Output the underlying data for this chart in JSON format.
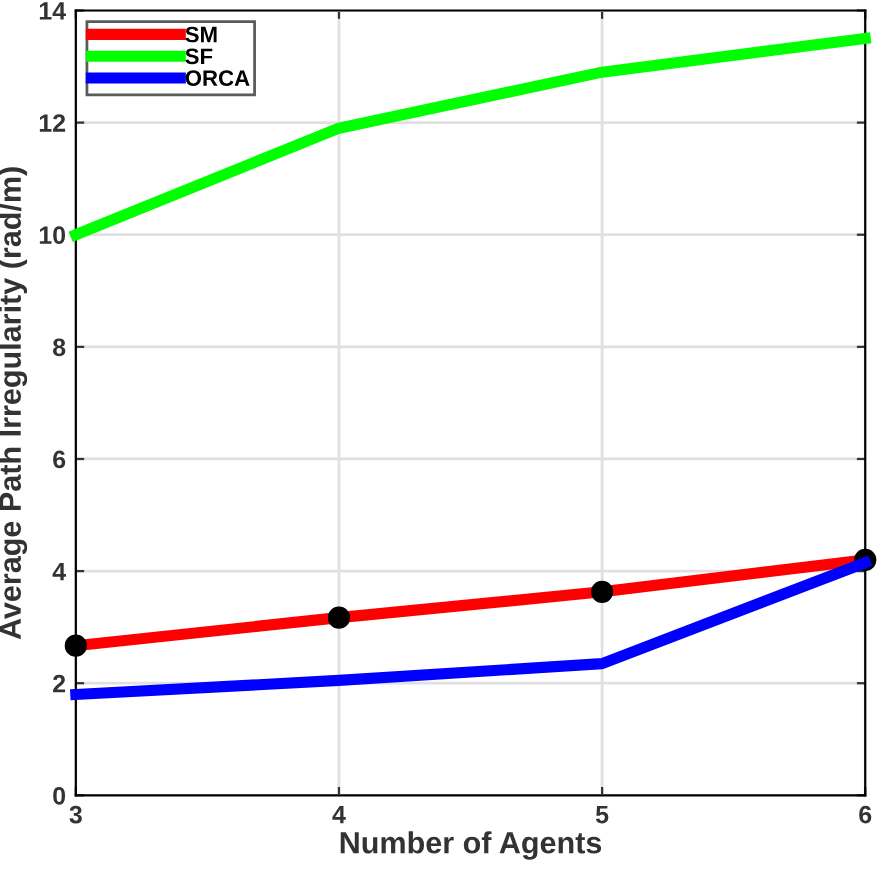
{
  "chart_data": {
    "type": "line",
    "xlabel": "Number of Agents",
    "ylabel": "Average Path Irregularity (rad/m)",
    "x": [
      3,
      4,
      5,
      6
    ],
    "series": [
      {
        "name": "SM",
        "color": "#ff0000",
        "values": [
          2.67,
          3.17,
          3.63,
          4.2
        ],
        "marker": "circle"
      },
      {
        "name": "SF",
        "color": "#00ff00",
        "values": [
          10.0,
          11.9,
          12.9,
          13.5
        ]
      },
      {
        "name": "ORCA",
        "color": "#0000ff",
        "values": [
          1.8,
          2.05,
          2.35,
          4.15
        ]
      }
    ],
    "xlim": [
      3,
      6
    ],
    "xticks": [
      3,
      4,
      5,
      6
    ],
    "ylim": [
      0,
      14
    ],
    "yticks": [
      0,
      2,
      4,
      6,
      8,
      10,
      12,
      14
    ],
    "grid": true,
    "legend": "top left"
  }
}
